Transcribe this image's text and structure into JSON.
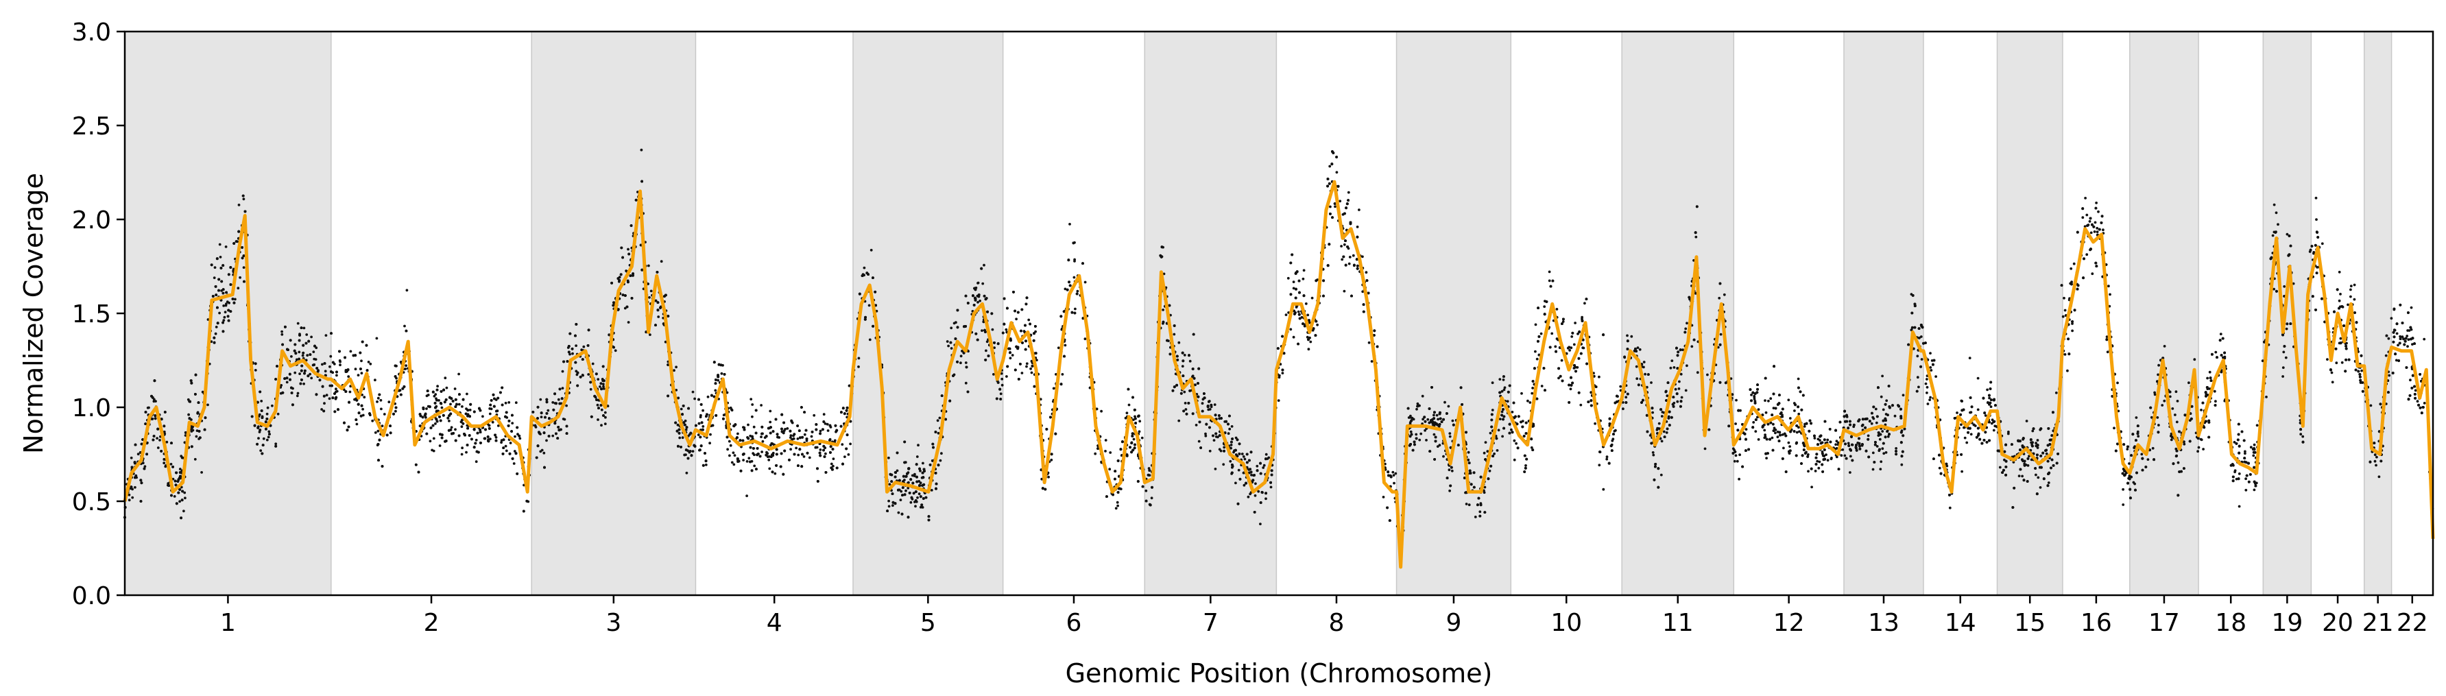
{
  "chart_data": {
    "type": "scatter",
    "title": "",
    "xlabel": "Genomic Position (Chromosome)",
    "ylabel": "Normalized Coverage",
    "ylim": [
      0.0,
      3.0
    ],
    "yticks": [
      "0.0",
      "0.5",
      "1.0",
      "1.5",
      "2.0",
      "2.5",
      "3.0"
    ],
    "grid": false,
    "legend": "none",
    "chromosomes": [
      {
        "label": "1",
        "span": [
          0.0,
          249.0
        ]
      },
      {
        "label": "2",
        "span": [
          249.0,
          491.0
        ]
      },
      {
        "label": "3",
        "span": [
          491.0,
          689.0
        ]
      },
      {
        "label": "4",
        "span": [
          689.0,
          879.0
        ]
      },
      {
        "label": "5",
        "span": [
          879.0,
          1060.0
        ]
      },
      {
        "label": "6",
        "span": [
          1060.0,
          1231.0
        ]
      },
      {
        "label": "7",
        "span": [
          1231.0,
          1390.0
        ]
      },
      {
        "label": "8",
        "span": [
          1390.0,
          1535.0
        ]
      },
      {
        "label": "9",
        "span": [
          1535.0,
          1673.0
        ]
      },
      {
        "label": "10",
        "span": [
          1673.0,
          1807.0
        ]
      },
      {
        "label": "11",
        "span": [
          1807.0,
          1942.0
        ]
      },
      {
        "label": "12",
        "span": [
          1942.0,
          2075.0
        ]
      },
      {
        "label": "13",
        "span": [
          2075.0,
          2171.0
        ]
      },
      {
        "label": "14",
        "span": [
          2171.0,
          2260.0
        ]
      },
      {
        "label": "15",
        "span": [
          2260.0,
          2339.0
        ]
      },
      {
        "label": "16",
        "span": [
          2339.0,
          2420.0
        ]
      },
      {
        "label": "17",
        "span": [
          2420.0,
          2503.0
        ]
      },
      {
        "label": "18",
        "span": [
          2503.0,
          2581.0
        ]
      },
      {
        "label": "19",
        "span": [
          2581.0,
          2639.0
        ]
      },
      {
        "label": "20",
        "span": [
          2639.0,
          2703.0
        ]
      },
      {
        "label": "21",
        "span": [
          2703.0,
          2736.0
        ]
      },
      {
        "label": "22",
        "span": [
          2736.0,
          2786.0
        ]
      }
    ],
    "shaded_chromosomes": [
      "1",
      "3",
      "5",
      "7",
      "9",
      "11",
      "13",
      "15",
      "17",
      "19",
      "21"
    ],
    "series": [
      {
        "kind": "scatter-points",
        "point_color": "#111111",
        "noise_sd": 0.085,
        "points_per_unit": 5
      },
      {
        "kind": "segment-line",
        "line_color": "#f5a20a",
        "segments": [
          [
            0,
            0.5
          ],
          [
            8,
            0.65
          ],
          [
            20,
            0.72
          ],
          [
            30,
            0.95
          ],
          [
            38,
            1.0
          ],
          [
            48,
            0.8
          ],
          [
            58,
            0.55
          ],
          [
            70,
            0.6
          ],
          [
            78,
            0.92
          ],
          [
            88,
            0.9
          ],
          [
            96,
            1.0
          ],
          [
            105,
            1.57
          ],
          [
            130,
            1.6
          ],
          [
            138,
            1.85
          ],
          [
            145,
            2.02
          ],
          [
            152,
            1.25
          ],
          [
            160,
            0.92
          ],
          [
            172,
            0.9
          ],
          [
            182,
            0.98
          ],
          [
            190,
            1.3
          ],
          [
            200,
            1.22
          ],
          [
            215,
            1.25
          ],
          [
            230,
            1.18
          ],
          [
            245,
            1.15
          ],
          [
            249,
            1.15
          ],
          [
            262,
            1.1
          ],
          [
            272,
            1.15
          ],
          [
            282,
            1.05
          ],
          [
            292,
            1.18
          ],
          [
            302,
            0.95
          ],
          [
            312,
            0.85
          ],
          [
            322,
            1.0
          ],
          [
            332,
            1.15
          ],
          [
            342,
            1.35
          ],
          [
            350,
            0.8
          ],
          [
            362,
            0.92
          ],
          [
            372,
            0.95
          ],
          [
            392,
            1.0
          ],
          [
            408,
            0.95
          ],
          [
            418,
            0.9
          ],
          [
            430,
            0.9
          ],
          [
            448,
            0.95
          ],
          [
            462,
            0.85
          ],
          [
            476,
            0.8
          ],
          [
            486,
            0.55
          ],
          [
            491,
            0.95
          ],
          [
            503,
            0.9
          ],
          [
            513,
            0.92
          ],
          [
            523,
            0.95
          ],
          [
            533,
            1.05
          ],
          [
            538,
            1.25
          ],
          [
            556,
            1.3
          ],
          [
            568,
            1.1
          ],
          [
            580,
            1.0
          ],
          [
            588,
            1.4
          ],
          [
            596,
            1.62
          ],
          [
            612,
            1.75
          ],
          [
            622,
            2.15
          ],
          [
            632,
            1.4
          ],
          [
            642,
            1.7
          ],
          [
            652,
            1.5
          ],
          [
            662,
            1.1
          ],
          [
            672,
            0.9
          ],
          [
            682,
            0.8
          ],
          [
            689,
            0.88
          ],
          [
            702,
            0.85
          ],
          [
            712,
            1.02
          ],
          [
            722,
            1.15
          ],
          [
            730,
            0.85
          ],
          [
            742,
            0.8
          ],
          [
            760,
            0.82
          ],
          [
            780,
            0.78
          ],
          [
            800,
            0.82
          ],
          [
            820,
            0.8
          ],
          [
            840,
            0.82
          ],
          [
            860,
            0.8
          ],
          [
            875,
            0.95
          ],
          [
            879,
            1.2
          ],
          [
            889,
            1.55
          ],
          [
            899,
            1.65
          ],
          [
            907,
            1.45
          ],
          [
            914,
            1.1
          ],
          [
            920,
            0.55
          ],
          [
            930,
            0.6
          ],
          [
            950,
            0.58
          ],
          [
            970,
            0.55
          ],
          [
            985,
            0.85
          ],
          [
            995,
            1.2
          ],
          [
            1005,
            1.35
          ],
          [
            1015,
            1.3
          ],
          [
            1025,
            1.5
          ],
          [
            1035,
            1.55
          ],
          [
            1045,
            1.35
          ],
          [
            1053,
            1.15
          ],
          [
            1060,
            1.25
          ],
          [
            1070,
            1.45
          ],
          [
            1080,
            1.35
          ],
          [
            1090,
            1.4
          ],
          [
            1100,
            1.2
          ],
          [
            1110,
            0.6
          ],
          [
            1120,
            0.9
          ],
          [
            1130,
            1.3
          ],
          [
            1140,
            1.6
          ],
          [
            1152,
            1.7
          ],
          [
            1162,
            1.4
          ],
          [
            1172,
            0.9
          ],
          [
            1182,
            0.7
          ],
          [
            1192,
            0.55
          ],
          [
            1202,
            0.6
          ],
          [
            1212,
            0.95
          ],
          [
            1222,
            0.85
          ],
          [
            1231,
            0.6
          ],
          [
            1241,
            0.62
          ],
          [
            1251,
            1.72
          ],
          [
            1259,
            1.5
          ],
          [
            1267,
            1.25
          ],
          [
            1277,
            1.1
          ],
          [
            1287,
            1.15
          ],
          [
            1297,
            0.95
          ],
          [
            1310,
            0.95
          ],
          [
            1322,
            0.9
          ],
          [
            1334,
            0.75
          ],
          [
            1350,
            0.7
          ],
          [
            1362,
            0.55
          ],
          [
            1376,
            0.6
          ],
          [
            1386,
            0.75
          ],
          [
            1390,
            1.2
          ],
          [
            1400,
            1.35
          ],
          [
            1410,
            1.55
          ],
          [
            1420,
            1.55
          ],
          [
            1430,
            1.4
          ],
          [
            1440,
            1.55
          ],
          [
            1450,
            2.05
          ],
          [
            1460,
            2.2
          ],
          [
            1470,
            1.9
          ],
          [
            1480,
            1.95
          ],
          [
            1490,
            1.8
          ],
          [
            1500,
            1.55
          ],
          [
            1510,
            1.2
          ],
          [
            1520,
            0.6
          ],
          [
            1530,
            0.55
          ],
          [
            1535,
            0.55
          ],
          [
            1540,
            0.15
          ],
          [
            1548,
            0.9
          ],
          [
            1570,
            0.9
          ],
          [
            1590,
            0.88
          ],
          [
            1600,
            0.7
          ],
          [
            1612,
            1.0
          ],
          [
            1622,
            0.55
          ],
          [
            1637,
            0.55
          ],
          [
            1650,
            0.8
          ],
          [
            1662,
            1.05
          ],
          [
            1673,
            0.95
          ],
          [
            1683,
            0.85
          ],
          [
            1693,
            0.8
          ],
          [
            1703,
            1.1
          ],
          [
            1713,
            1.35
          ],
          [
            1723,
            1.55
          ],
          [
            1733,
            1.35
          ],
          [
            1743,
            1.2
          ],
          [
            1753,
            1.3
          ],
          [
            1763,
            1.45
          ],
          [
            1775,
            1.0
          ],
          [
            1785,
            0.8
          ],
          [
            1795,
            0.9
          ],
          [
            1807,
            1.05
          ],
          [
            1817,
            1.3
          ],
          [
            1827,
            1.25
          ],
          [
            1837,
            1.05
          ],
          [
            1847,
            0.8
          ],
          [
            1857,
            0.9
          ],
          [
            1867,
            1.1
          ],
          [
            1877,
            1.2
          ],
          [
            1887,
            1.35
          ],
          [
            1897,
            1.8
          ],
          [
            1907,
            0.85
          ],
          [
            1917,
            1.2
          ],
          [
            1927,
            1.55
          ],
          [
            1935,
            1.2
          ],
          [
            1942,
            0.8
          ],
          [
            1955,
            0.9
          ],
          [
            1965,
            1.0
          ],
          [
            1980,
            0.92
          ],
          [
            1995,
            0.95
          ],
          [
            2008,
            0.88
          ],
          [
            2020,
            0.95
          ],
          [
            2032,
            0.78
          ],
          [
            2045,
            0.78
          ],
          [
            2055,
            0.8
          ],
          [
            2068,
            0.75
          ],
          [
            2075,
            0.88
          ],
          [
            2090,
            0.85
          ],
          [
            2105,
            0.88
          ],
          [
            2120,
            0.9
          ],
          [
            2135,
            0.88
          ],
          [
            2148,
            0.9
          ],
          [
            2158,
            1.4
          ],
          [
            2168,
            1.3
          ],
          [
            2171,
            1.3
          ],
          [
            2185,
            1.05
          ],
          [
            2195,
            0.7
          ],
          [
            2205,
            0.55
          ],
          [
            2213,
            0.95
          ],
          [
            2223,
            0.9
          ],
          [
            2233,
            0.95
          ],
          [
            2243,
            0.88
          ],
          [
            2252,
            0.98
          ],
          [
            2260,
            0.98
          ],
          [
            2266,
            0.75
          ],
          [
            2280,
            0.72
          ],
          [
            2295,
            0.78
          ],
          [
            2310,
            0.7
          ],
          [
            2325,
            0.75
          ],
          [
            2334,
            0.95
          ],
          [
            2339,
            1.35
          ],
          [
            2349,
            1.55
          ],
          [
            2358,
            1.75
          ],
          [
            2366,
            1.95
          ],
          [
            2376,
            1.88
          ],
          [
            2386,
            1.92
          ],
          [
            2396,
            1.35
          ],
          [
            2404,
            0.95
          ],
          [
            2412,
            0.7
          ],
          [
            2420,
            0.65
          ],
          [
            2430,
            0.8
          ],
          [
            2440,
            0.75
          ],
          [
            2450,
            0.95
          ],
          [
            2460,
            1.25
          ],
          [
            2470,
            0.9
          ],
          [
            2480,
            0.78
          ],
          [
            2490,
            0.95
          ],
          [
            2498,
            1.2
          ],
          [
            2503,
            0.85
          ],
          [
            2513,
            1.0
          ],
          [
            2523,
            1.15
          ],
          [
            2533,
            1.25
          ],
          [
            2543,
            0.75
          ],
          [
            2553,
            0.7
          ],
          [
            2563,
            0.68
          ],
          [
            2573,
            0.65
          ],
          [
            2581,
            1.1
          ],
          [
            2589,
            1.55
          ],
          [
            2597,
            1.9
          ],
          [
            2605,
            1.4
          ],
          [
            2613,
            1.75
          ],
          [
            2621,
            1.3
          ],
          [
            2629,
            0.9
          ],
          [
            2635,
            1.6
          ],
          [
            2639,
            1.7
          ],
          [
            2647,
            1.85
          ],
          [
            2655,
            1.6
          ],
          [
            2663,
            1.25
          ],
          [
            2671,
            1.5
          ],
          [
            2679,
            1.35
          ],
          [
            2687,
            1.55
          ],
          [
            2695,
            1.22
          ],
          [
            2703,
            1.22
          ],
          [
            2712,
            0.78
          ],
          [
            2722,
            0.75
          ],
          [
            2730,
            1.2
          ],
          [
            2736,
            1.32
          ],
          [
            2748,
            1.3
          ],
          [
            2760,
            1.3
          ],
          [
            2770,
            1.05
          ],
          [
            2778,
            1.2
          ],
          [
            2786,
            0.3
          ]
        ]
      }
    ]
  }
}
